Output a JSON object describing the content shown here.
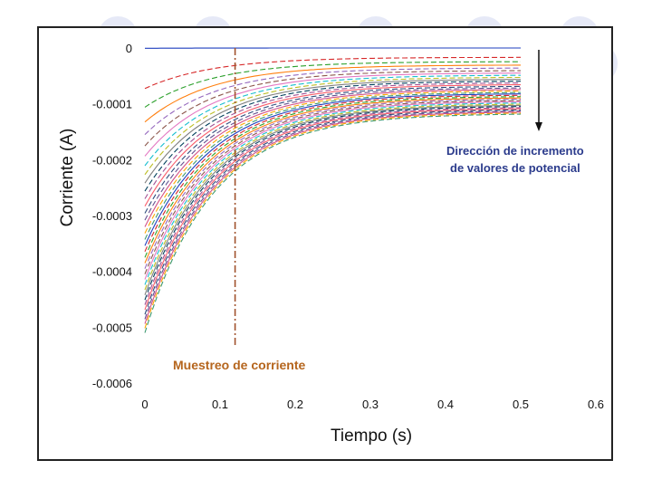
{
  "chart_data": {
    "type": "line",
    "title": "",
    "xlabel": "Tiempo (s)",
    "ylabel": "Corriente (A)",
    "xlim": [
      0,
      0.6
    ],
    "ylim": [
      -0.0006,
      0
    ],
    "x_ticks": [
      0,
      0.1,
      0.2,
      0.3,
      0.4,
      0.5,
      0.6
    ],
    "x_tick_labels": [
      "0",
      "0.1",
      "0.2",
      "0.3",
      "0.4",
      "0.5",
      "0.6"
    ],
    "y_ticks": [
      0,
      -0.0001,
      -0.0002,
      -0.0003,
      -0.0004,
      -0.0005,
      -0.0006
    ],
    "y_tick_labels": [
      "0",
      "-0.0001",
      "-0.0002",
      "-0.0003",
      "-0.0004",
      "-0.0005",
      "-0.0006"
    ],
    "grid": false,
    "legend": "none",
    "series_count": 36,
    "x_end": 0.5,
    "family": "current transients i(t) = I_end + (I_start - I_end) * exp(-t / tau)",
    "start_values": {
      "first": -5e-07,
      "last": -0.00051
    },
    "end_values": {
      "first": 0.0,
      "last": -0.000117
    },
    "tau_s": 0.09,
    "sampling_time_s": 0.12,
    "annotations": {
      "direction": [
        "Dirección de incremento",
        "de valores de potencial"
      ],
      "sampling": "Muestreo de corriente"
    },
    "colors": {
      "sampling_line": "#a0522d",
      "direction_text": "#2b3b8c",
      "sampling_text": "#b5651d",
      "palette": [
        "#1f3fbf",
        "#d62728",
        "#2ca02c",
        "#ff7f0e",
        "#9467bd",
        "#8c564b",
        "#e377c2",
        "#17becf",
        "#bcbd22",
        "#7f7f7f",
        "#003f5c",
        "#a05195",
        "#f95d6a",
        "#2f4b7c",
        "#665191",
        "#d45087",
        "#ffa600",
        "#3d9970"
      ]
    }
  }
}
